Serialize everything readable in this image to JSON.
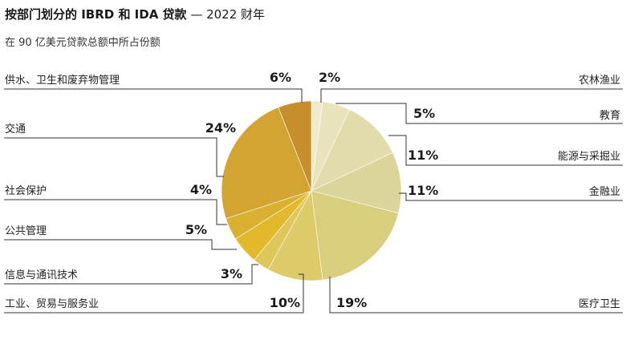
{
  "header": {
    "title": "按部门划分的 IBRD 和 IDA 贷款",
    "title_year": " — 2022 财年",
    "subtitle": "在 90 亿美元贷款总额中所占份额"
  },
  "chart_data": {
    "type": "pie",
    "title": "按部门划分的 IBRD 和 IDA 贷款 — 2022 财年",
    "subtitle": "在 90 亿美元贷款总额中所占份额",
    "unit": "%",
    "slices": [
      {
        "label": "农林渔业",
        "value": 2,
        "display": "2%",
        "color": "#efeacb"
      },
      {
        "label": "教育",
        "value": 5,
        "display": "5%",
        "color": "#e9e3bb"
      },
      {
        "label": "能源与采掘业",
        "value": 11,
        "display": "11%",
        "color": "#e2dcad"
      },
      {
        "label": "金融业",
        "value": 11,
        "display": "11%",
        "color": "#dcd59b"
      },
      {
        "label": "医疗卫生",
        "value": 19,
        "display": "19%",
        "color": "#d9cd7e"
      },
      {
        "label": "工业、贸易与服务业",
        "value": 10,
        "display": "10%",
        "color": "#dccb68"
      },
      {
        "label": "信息与通讯技术",
        "value": 3,
        "display": "3%",
        "color": "#dfc65a"
      },
      {
        "label": "公共管理",
        "value": 5,
        "display": "5%",
        "color": "#e1b92b"
      },
      {
        "label": "社会保护",
        "value": 4,
        "display": "4%",
        "color": "#d9b02f"
      },
      {
        "label": "交通",
        "value": 24,
        "display": "24%",
        "color": "#d3a432"
      },
      {
        "label": "供水、卫生和废弃物管理",
        "value": 6,
        "display": "6%",
        "color": "#c68f2c"
      }
    ]
  }
}
